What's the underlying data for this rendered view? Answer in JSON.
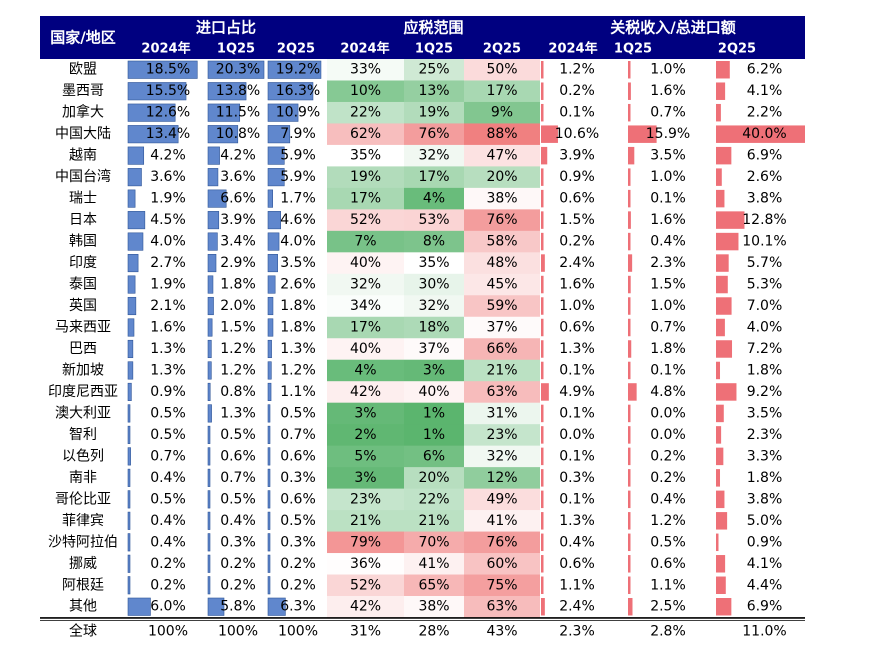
{
  "chart_data": {
    "type": "table",
    "header": {
      "region_label": "国家/地区",
      "groups": [
        {
          "label": "进口占比",
          "subcolumns": [
            "2024年",
            "1Q25",
            "2Q25"
          ]
        },
        {
          "label": "应税范围",
          "subcolumns": [
            "2024年",
            "1Q25",
            "2Q25"
          ]
        },
        {
          "label": "关税收入/总进口额",
          "subcolumns": [
            "2024年",
            "1Q25",
            "2Q25"
          ]
        }
      ]
    },
    "rows": [
      {
        "region": "欧盟",
        "share": [
          18.5,
          20.3,
          19.2
        ],
        "scope": [
          33,
          25,
          50
        ],
        "tariff": [
          1.2,
          1.0,
          6.2
        ]
      },
      {
        "region": "墨西哥",
        "share": [
          15.5,
          13.8,
          16.3
        ],
        "scope": [
          10,
          13,
          17
        ],
        "tariff": [
          0.2,
          1.6,
          4.1
        ]
      },
      {
        "region": "加拿大",
        "share": [
          12.6,
          11.5,
          10.9
        ],
        "scope": [
          22,
          19,
          9
        ],
        "tariff": [
          0.1,
          0.7,
          2.2
        ]
      },
      {
        "region": "中国大陆",
        "share": [
          13.4,
          10.8,
          7.9
        ],
        "scope": [
          62,
          76,
          88
        ],
        "tariff": [
          10.6,
          15.9,
          40.0
        ]
      },
      {
        "region": "越南",
        "share": [
          4.2,
          4.2,
          5.9
        ],
        "scope": [
          35,
          32,
          47
        ],
        "tariff": [
          3.9,
          3.5,
          6.9
        ]
      },
      {
        "region": "中国台湾",
        "share": [
          3.6,
          3.6,
          5.9
        ],
        "scope": [
          19,
          17,
          20
        ],
        "tariff": [
          0.9,
          1.0,
          2.6
        ]
      },
      {
        "region": "瑞士",
        "share": [
          1.9,
          6.6,
          1.7
        ],
        "scope": [
          17,
          4,
          38
        ],
        "tariff": [
          0.6,
          0.1,
          3.8
        ]
      },
      {
        "region": "日本",
        "share": [
          4.5,
          3.9,
          4.6
        ],
        "scope": [
          52,
          53,
          76
        ],
        "tariff": [
          1.5,
          1.6,
          12.8
        ]
      },
      {
        "region": "韩国",
        "share": [
          4.0,
          3.4,
          4.0
        ],
        "scope": [
          7,
          8,
          58
        ],
        "tariff": [
          0.2,
          0.4,
          10.1
        ]
      },
      {
        "region": "印度",
        "share": [
          2.7,
          2.9,
          3.5
        ],
        "scope": [
          40,
          35,
          48
        ],
        "tariff": [
          2.4,
          2.3,
          5.7
        ]
      },
      {
        "region": "泰国",
        "share": [
          1.9,
          1.8,
          2.6
        ],
        "scope": [
          32,
          30,
          45
        ],
        "tariff": [
          1.6,
          1.5,
          5.3
        ]
      },
      {
        "region": "英国",
        "share": [
          2.1,
          2.0,
          1.8
        ],
        "scope": [
          34,
          32,
          59
        ],
        "tariff": [
          1.0,
          1.0,
          7.0
        ]
      },
      {
        "region": "马来西亚",
        "share": [
          1.6,
          1.5,
          1.8
        ],
        "scope": [
          17,
          18,
          37
        ],
        "tariff": [
          0.6,
          0.7,
          4.0
        ]
      },
      {
        "region": "巴西",
        "share": [
          1.3,
          1.2,
          1.3
        ],
        "scope": [
          40,
          37,
          66
        ],
        "tariff": [
          1.3,
          1.8,
          7.2
        ]
      },
      {
        "region": "新加坡",
        "share": [
          1.3,
          1.2,
          1.2
        ],
        "scope": [
          4,
          3,
          21
        ],
        "tariff": [
          0.1,
          0.1,
          1.8
        ]
      },
      {
        "region": "印度尼西亚",
        "share": [
          0.9,
          0.8,
          1.1
        ],
        "scope": [
          42,
          40,
          63
        ],
        "tariff": [
          4.9,
          4.8,
          9.2
        ]
      },
      {
        "region": "澳大利亚",
        "share": [
          0.5,
          1.3,
          0.5
        ],
        "scope": [
          3,
          1,
          31
        ],
        "tariff": [
          0.1,
          0.0,
          3.5
        ]
      },
      {
        "region": "智利",
        "share": [
          0.5,
          0.5,
          0.7
        ],
        "scope": [
          2,
          1,
          23
        ],
        "tariff": [
          0.0,
          0.0,
          2.3
        ]
      },
      {
        "region": "以色列",
        "share": [
          0.7,
          0.6,
          0.6
        ],
        "scope": [
          5,
          6,
          32
        ],
        "tariff": [
          0.1,
          0.2,
          3.3
        ]
      },
      {
        "region": "南非",
        "share": [
          0.4,
          0.7,
          0.3
        ],
        "scope": [
          3,
          20,
          12
        ],
        "tariff": [
          0.3,
          0.2,
          1.8
        ]
      },
      {
        "region": "哥伦比亚",
        "share": [
          0.5,
          0.5,
          0.6
        ],
        "scope": [
          23,
          22,
          49
        ],
        "tariff": [
          0.1,
          0.4,
          3.8
        ]
      },
      {
        "region": "菲律宾",
        "share": [
          0.4,
          0.4,
          0.5
        ],
        "scope": [
          21,
          21,
          41
        ],
        "tariff": [
          1.3,
          1.2,
          5.0
        ]
      },
      {
        "region": "沙特阿拉伯",
        "share": [
          0.4,
          0.3,
          0.3
        ],
        "scope": [
          79,
          70,
          76
        ],
        "tariff": [
          0.4,
          0.5,
          0.9
        ]
      },
      {
        "region": "挪威",
        "share": [
          0.2,
          0.2,
          0.2
        ],
        "scope": [
          36,
          41,
          60
        ],
        "tariff": [
          0.6,
          0.6,
          4.1
        ]
      },
      {
        "region": "阿根廷",
        "share": [
          0.2,
          0.2,
          0.2
        ],
        "scope": [
          52,
          65,
          75
        ],
        "tariff": [
          1.1,
          1.1,
          4.4
        ]
      },
      {
        "region": "其他",
        "share": [
          6.0,
          5.8,
          6.3
        ],
        "scope": [
          42,
          38,
          63
        ],
        "tariff": [
          2.4,
          2.5,
          6.9
        ]
      }
    ],
    "total": {
      "region": "全球",
      "share": [
        100,
        100,
        100
      ],
      "scope": [
        31,
        28,
        43
      ],
      "tariff": [
        2.3,
        2.8,
        11.0
      ]
    },
    "colors": {
      "header_bg": "#000080",
      "header_text": "#ffffff",
      "share_bar": "#4472c4",
      "tariff_bar": "#e8404a",
      "scope_low": "#5bb56e",
      "scope_mid": "#ffffff",
      "scope_high": "#f08080"
    }
  }
}
